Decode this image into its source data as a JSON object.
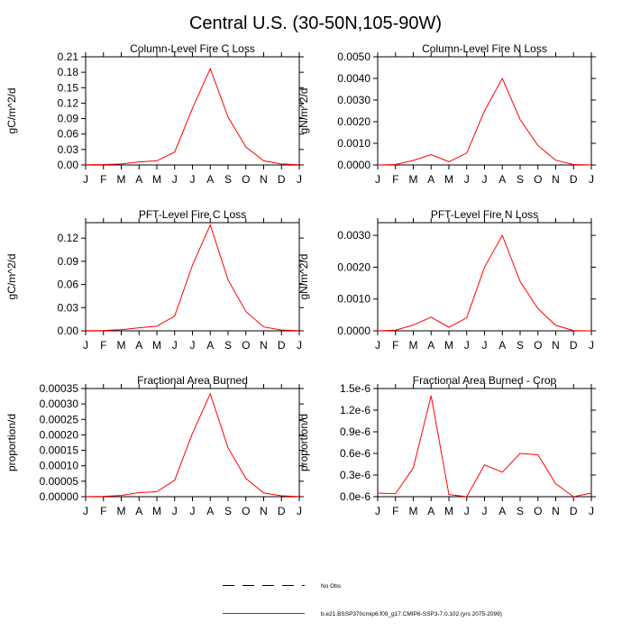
{
  "title": "Central U.S. (30-50N,105-90W)",
  "legend": {
    "entries": [
      {
        "label": "No Obs",
        "style": "dashed",
        "color": "#000000"
      },
      {
        "label": "b.e21.BSSP370cmip6.f09_g17.CMIP6-SSP3-7.0.102 (yrs 2075-2099)",
        "style": "solid",
        "color": "#ff0000"
      }
    ]
  },
  "chart_data": [
    {
      "type": "line",
      "title": "Column-Level Fire C Loss",
      "ylabel": "gC/m^2/d",
      "categories": [
        "J",
        "F",
        "M",
        "A",
        "M",
        "J",
        "J",
        "A",
        "S",
        "O",
        "N",
        "D",
        "J"
      ],
      "ylim": [
        0,
        0.21
      ],
      "yticks": [
        "0.00",
        "0.03",
        "0.06",
        "0.09",
        "0.12",
        "0.15",
        "0.18",
        "0.21"
      ],
      "series": [
        {
          "color": "#ff0000",
          "values": [
            0.0005,
            0.0008,
            0.002,
            0.006,
            0.008,
            0.025,
            0.11,
            0.187,
            0.093,
            0.035,
            0.008,
            0.002,
            0.0005
          ]
        }
      ]
    },
    {
      "type": "line",
      "title": "Column-Level Fire N Loss",
      "ylabel": "gN/m^2/d",
      "categories": [
        "J",
        "F",
        "M",
        "A",
        "M",
        "J",
        "J",
        "A",
        "S",
        "O",
        "N",
        "D",
        "J"
      ],
      "ylim": [
        0,
        0.005
      ],
      "yticks": [
        "0.0000",
        "0.0010",
        "0.0020",
        "0.0030",
        "0.0040",
        "0.0050"
      ],
      "series": [
        {
          "color": "#ff0000",
          "values": [
            0.0,
            2e-05,
            0.00021,
            0.00048,
            0.00015,
            0.00055,
            0.0025,
            0.004,
            0.0021,
            0.0009,
            0.00022,
            2e-05,
            0.0
          ]
        }
      ]
    },
    {
      "type": "line",
      "title": "PFT-Level Fire C Loss",
      "ylabel": "gC/m^2/d",
      "categories": [
        "J",
        "F",
        "M",
        "A",
        "M",
        "J",
        "J",
        "A",
        "S",
        "O",
        "N",
        "D",
        "J"
      ],
      "ylim": [
        0,
        0.14
      ],
      "yticks": [
        "0.00",
        "0.03",
        "0.06",
        "0.09",
        "0.12"
      ],
      "ytick_values": [
        0,
        0.03,
        0.06,
        0.09,
        0.12
      ],
      "series": [
        {
          "color": "#ff0000",
          "values": [
            0.0003,
            0.0005,
            0.0015,
            0.004,
            0.006,
            0.019,
            0.085,
            0.137,
            0.066,
            0.025,
            0.005,
            0.001,
            0.0003
          ]
        }
      ]
    },
    {
      "type": "line",
      "title": "PFT-Level Fire N Loss",
      "ylabel": "gN/m^2/d",
      "categories": [
        "J",
        "F",
        "M",
        "A",
        "M",
        "J",
        "J",
        "A",
        "S",
        "O",
        "N",
        "D",
        "J"
      ],
      "ylim": [
        0,
        0.0034
      ],
      "yticks": [
        "0.0000",
        "0.0010",
        "0.0020",
        "0.0030"
      ],
      "ytick_values": [
        0,
        0.001,
        0.002,
        0.003
      ],
      "series": [
        {
          "color": "#ff0000",
          "values": [
            0.0,
            2e-05,
            0.00018,
            0.00043,
            0.00011,
            0.00041,
            0.002,
            0.003,
            0.00155,
            0.0007,
            0.00017,
            1e-05,
            0.0
          ]
        }
      ]
    },
    {
      "type": "line",
      "title": "Fractional Area Burned",
      "ylabel": "proportion/d",
      "categories": [
        "J",
        "F",
        "M",
        "A",
        "M",
        "J",
        "J",
        "A",
        "S",
        "O",
        "N",
        "D",
        "J"
      ],
      "ylim": [
        0,
        0.00035
      ],
      "yticks": [
        "0.00000",
        "0.00005",
        "0.00010",
        "0.00015",
        "0.00020",
        "0.00025",
        "0.00030",
        "0.00035"
      ],
      "series": [
        {
          "color": "#ff0000",
          "values": [
            5e-07,
            1e-06,
            4e-06,
            1.3e-05,
            1.6e-05,
            5.3e-05,
            0.000205,
            0.000333,
            0.000158,
            5.9e-05,
            1.2e-05,
            3e-06,
            5e-07
          ]
        }
      ]
    },
    {
      "type": "line",
      "title": "Fractional Area Burned - Crop",
      "ylabel": "proportion/d",
      "categories": [
        "J",
        "F",
        "M",
        "A",
        "M",
        "J",
        "J",
        "A",
        "S",
        "O",
        "N",
        "D",
        "J"
      ],
      "ylim": [
        0,
        1.5e-06
      ],
      "yticks": [
        "0.0e-6",
        "0.3e-6",
        "0.6e-6",
        "0.9e-6",
        "1.2e-6",
        "1.5e-6"
      ],
      "series": [
        {
          "color": "#ff0000",
          "values": [
            5e-08,
            4e-08,
            4e-07,
            1.4e-06,
            3e-08,
            0.0,
            4.4e-07,
            3.4e-07,
            6e-07,
            5.8e-07,
            1.8e-07,
            0.0,
            5e-08
          ]
        }
      ]
    }
  ]
}
